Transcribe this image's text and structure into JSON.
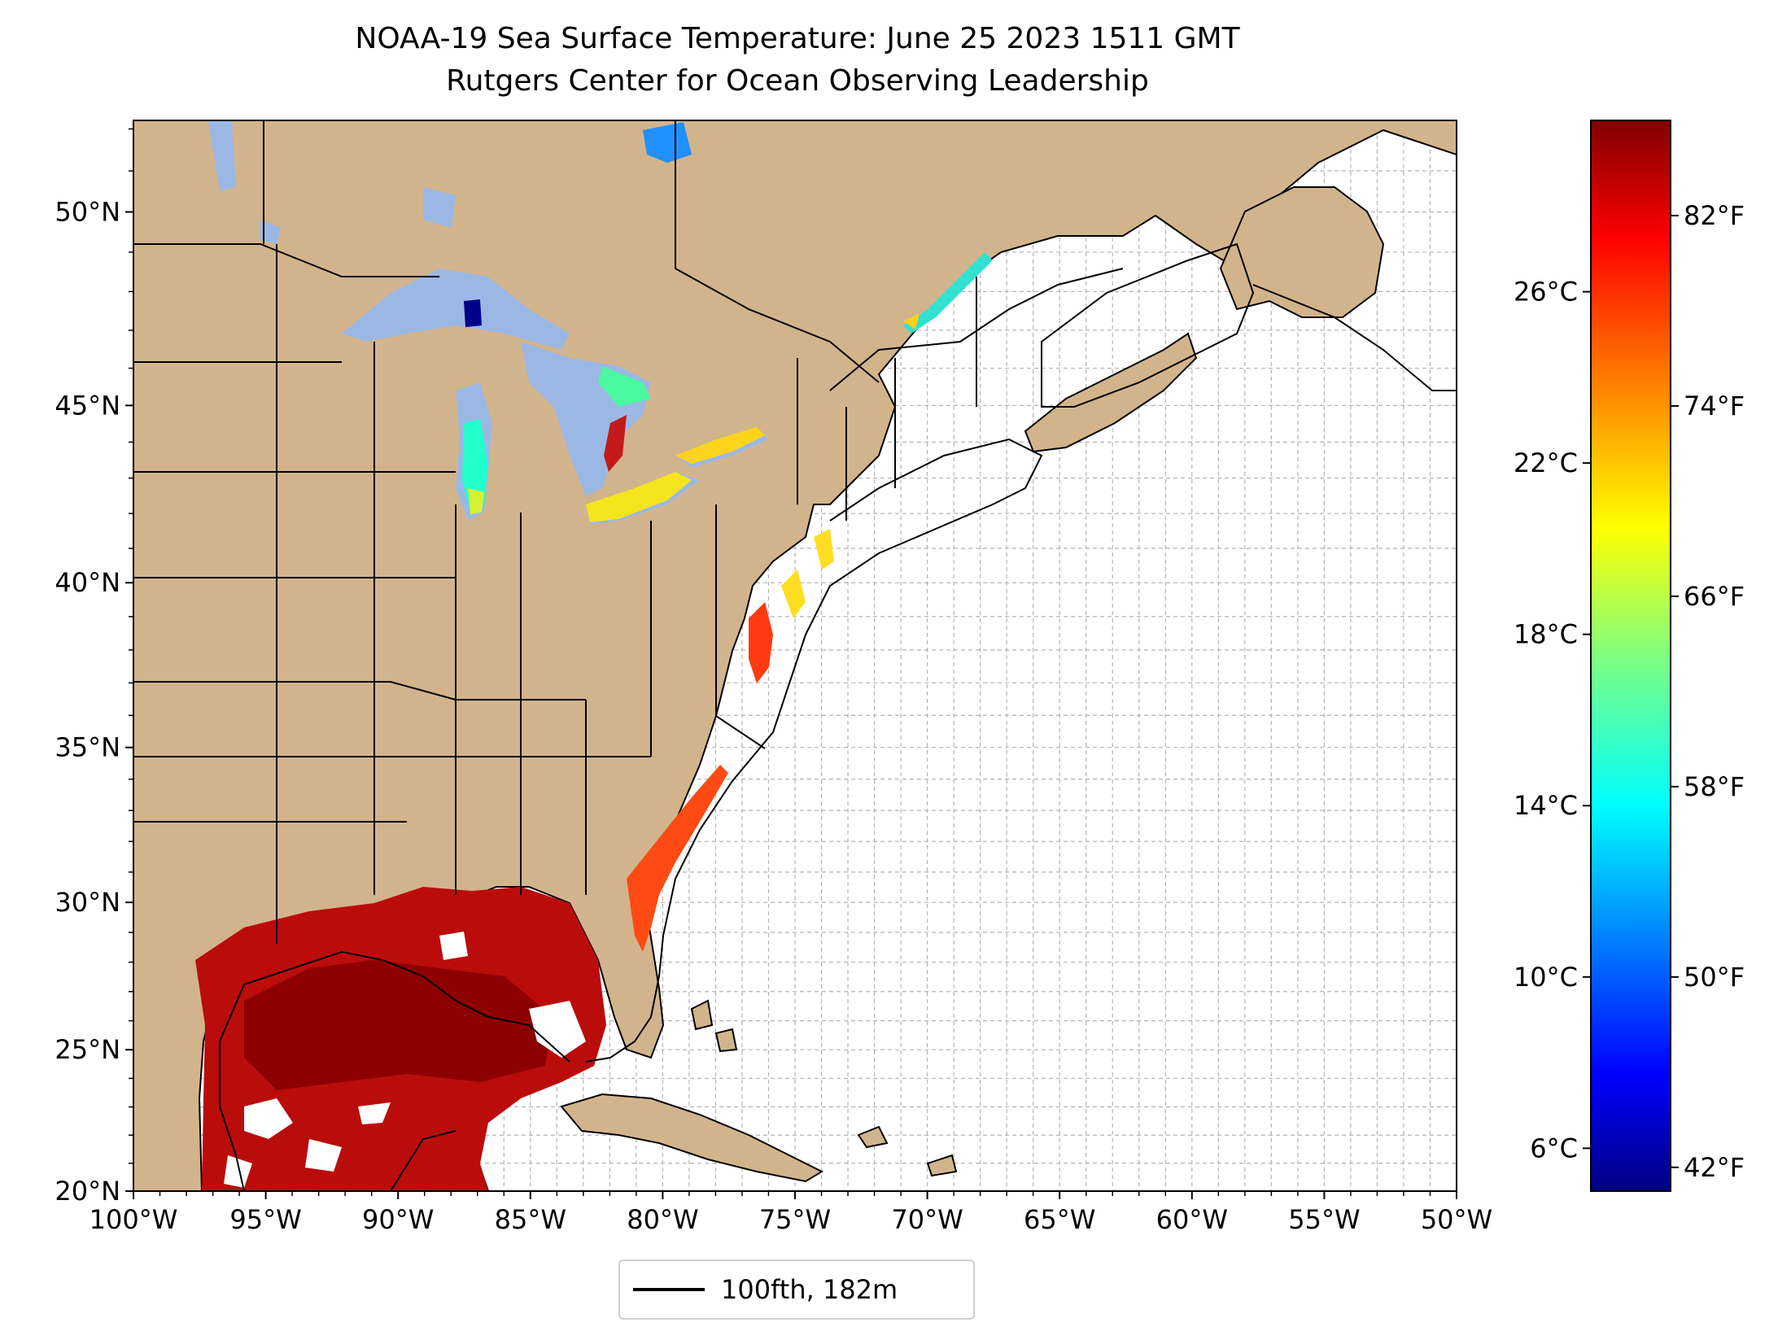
{
  "title": "NOAA-19 Sea Surface Temperature: June 25 2023 1511 GMT",
  "subtitle": "Rutgers Center for Ocean Observing Leadership",
  "map": {
    "extent": {
      "lon": [
        -100,
        -50
      ],
      "lat": [
        20,
        52.2
      ]
    },
    "lat_ticks": [
      "20°N",
      "25°N",
      "30°N",
      "35°N",
      "40°N",
      "45°N",
      "50°N"
    ],
    "lon_ticks": [
      "100°W",
      "95°W",
      "90°W",
      "85°W",
      "80°W",
      "75°W",
      "70°W",
      "65°W",
      "60°W",
      "55°W",
      "50°W"
    ],
    "land_color": "#d2b48c",
    "lake_color": "#9bb8e4",
    "grid": "dashed, every 1 degree"
  },
  "colorbar": {
    "range_c": [
      5,
      30
    ],
    "colormap": "jet",
    "celsius_ticks": [
      "6°C",
      "10°C",
      "14°C",
      "18°C",
      "22°C",
      "26°C"
    ],
    "fahrenheit_ticks": [
      "42°F",
      "50°F",
      "58°F",
      "66°F",
      "74°F",
      "82°F"
    ]
  },
  "legend": {
    "label": "100fth, 182m",
    "line_color": "#000000"
  }
}
